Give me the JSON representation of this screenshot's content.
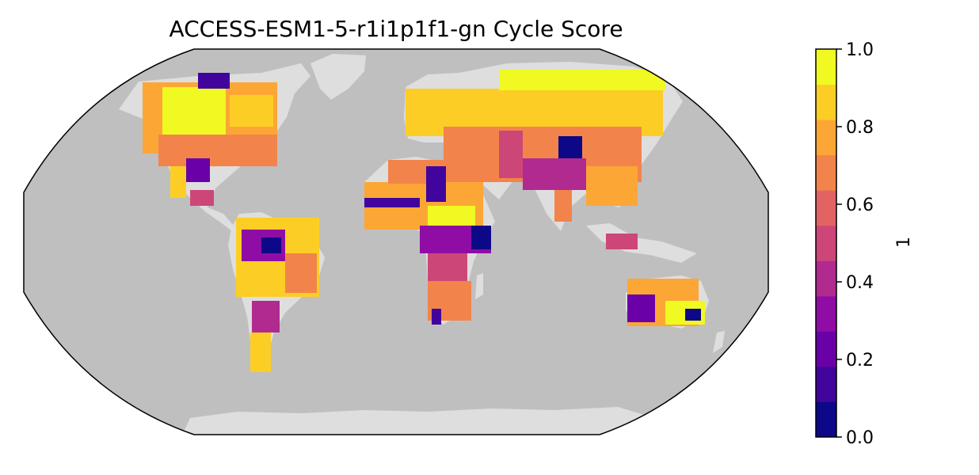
{
  "figure": {
    "title": "ACCESS-ESM1-5-r1i1p1f1-gn Cycle Score",
    "colorbar_label": "1"
  },
  "map": {
    "projection": "Robinson",
    "ocean_color": "#bfbfbf",
    "land_color": "#dedede",
    "border_color": "#000000"
  },
  "colorbar": {
    "range": [
      0.0,
      1.0
    ],
    "ticks": [
      "0.0",
      "0.2",
      "0.4",
      "0.6",
      "0.8",
      "1.0"
    ],
    "colors": [
      "#0d0887",
      "#41049d",
      "#6a00a8",
      "#8f0da4",
      "#b12a90",
      "#cc4778",
      "#e16462",
      "#f2844b",
      "#fca636",
      "#fcce25",
      "#f0f921"
    ]
  }
}
